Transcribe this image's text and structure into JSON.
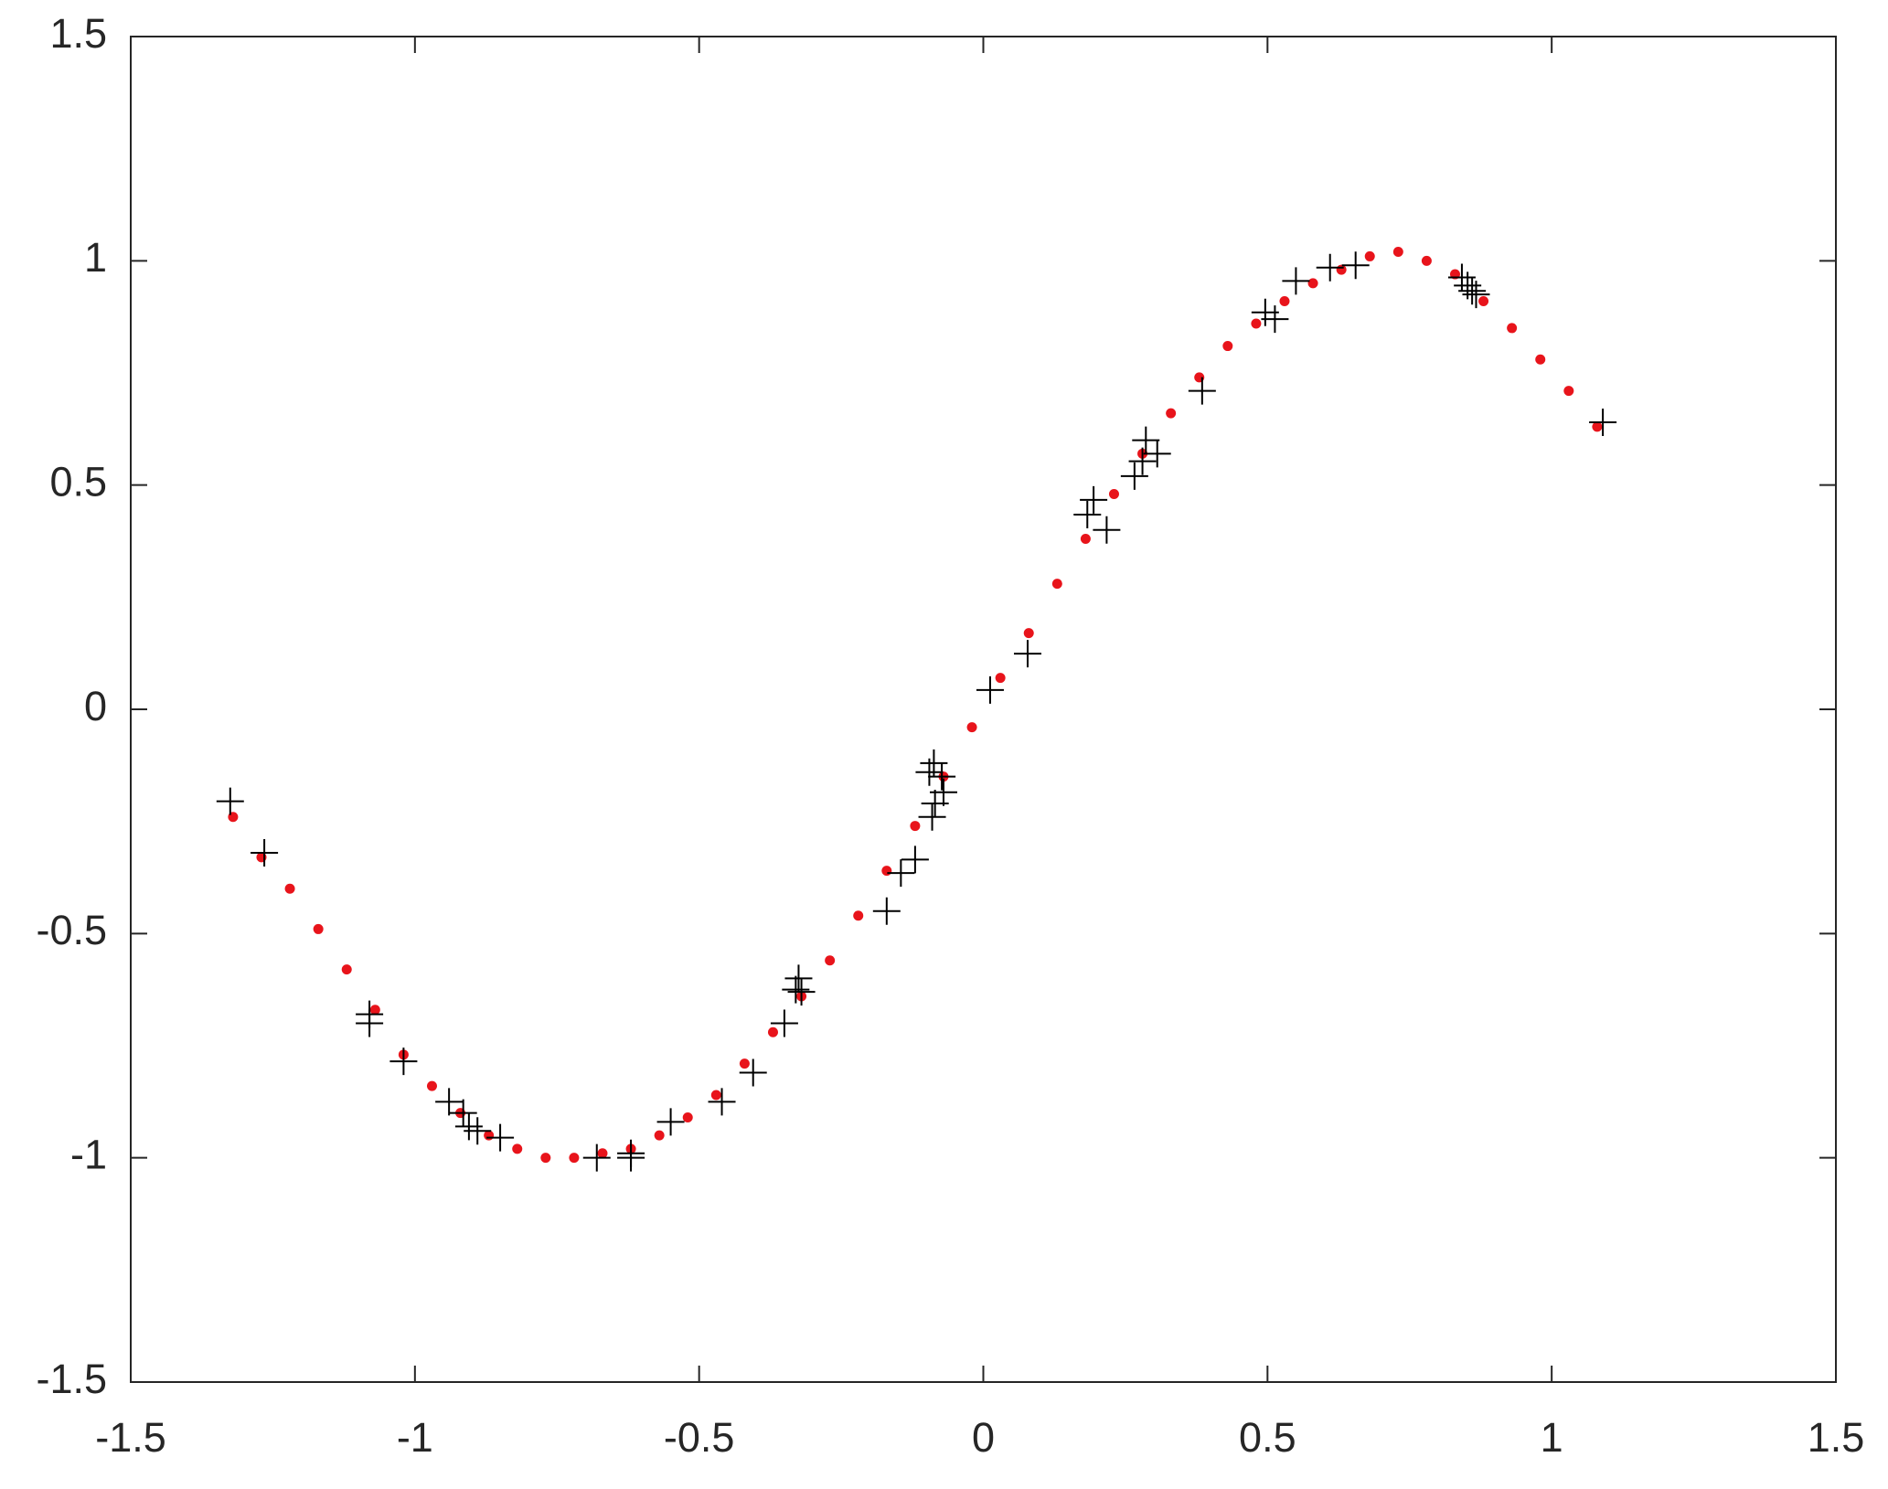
{
  "chart_data": {
    "type": "scatter",
    "xlim": [
      -1.5,
      1.5
    ],
    "ylim": [
      -1.5,
      1.5
    ],
    "xticks": [
      -1.5,
      -1,
      -0.5,
      0,
      0.5,
      1,
      1.5
    ],
    "yticks": [
      -1.5,
      -1,
      -0.5,
      0,
      0.5,
      1,
      1.5
    ],
    "series": [
      {
        "color": "#e8141b",
        "line": true,
        "marker": "dot",
        "x": [
          -1.32,
          -1.27,
          -1.22,
          -1.17,
          -1.12,
          -1.07,
          -1.02,
          -0.97,
          -0.92,
          -0.87,
          -0.82,
          -0.77,
          -0.72,
          -0.67,
          -0.62,
          -0.57,
          -0.52,
          -0.47,
          -0.42,
          -0.37,
          -0.32,
          -0.27,
          -0.22,
          -0.17,
          -0.12,
          -0.07,
          -0.02,
          0.03,
          0.08,
          0.13,
          0.18,
          0.23,
          0.28,
          0.33,
          0.38,
          0.43,
          0.48,
          0.53,
          0.58,
          0.63,
          0.68,
          0.73,
          0.78,
          0.83,
          0.88,
          0.93,
          0.98,
          1.03,
          1.08
        ],
        "values": [
          -0.24,
          -0.33,
          -0.4,
          -0.49,
          -0.58,
          -0.67,
          -0.77,
          -0.84,
          -0.9,
          -0.95,
          -0.98,
          -1,
          -1,
          -0.99,
          -0.98,
          -0.95,
          -0.91,
          -0.86,
          -0.79,
          -0.72,
          -0.64,
          -0.56,
          -0.46,
          -0.36,
          -0.26,
          -0.15,
          -0.04,
          0.07,
          0.17,
          0.28,
          0.38,
          0.48,
          0.57,
          0.66,
          0.74,
          0.81,
          0.86,
          0.91,
          0.95,
          0.98,
          1.01,
          1.02,
          1,
          0.97,
          0.91,
          0.85,
          0.78,
          0.71,
          0.63
        ]
      },
      {
        "color": "#000000",
        "line": false,
        "marker": "plus",
        "x": [
          -1.325,
          -1.265,
          -1.08,
          -1.08,
          -1.02,
          -0.94,
          -0.915,
          -0.905,
          -0.89,
          -0.85,
          -0.68,
          -0.62,
          -0.62,
          -0.55,
          -0.46,
          -0.405,
          -0.35,
          -0.33,
          -0.325,
          -0.32,
          -0.17,
          -0.145,
          -0.12,
          -0.09,
          -0.087,
          -0.095,
          -0.073,
          -0.07,
          -0.085,
          0.012,
          0.078,
          0.183,
          0.194,
          0.217,
          0.266,
          0.28,
          0.286,
          0.306,
          0.385,
          0.496,
          0.513,
          0.55,
          0.61,
          0.655,
          0.842,
          0.852,
          0.86,
          0.867,
          1.09
        ],
        "values": [
          -0.205,
          -0.32,
          -0.68,
          -0.7,
          -0.785,
          -0.875,
          -0.9,
          -0.93,
          -0.94,
          -0.955,
          -1,
          -0.99,
          -1,
          -0.92,
          -0.875,
          -0.81,
          -0.7,
          -0.625,
          -0.6,
          -0.63,
          -0.45,
          -0.365,
          -0.335,
          -0.24,
          -0.12,
          -0.14,
          -0.15,
          -0.185,
          -0.21,
          0.043,
          0.124,
          0.434,
          0.467,
          0.4,
          0.52,
          0.553,
          0.6,
          0.57,
          0.71,
          0.885,
          0.87,
          0.955,
          0.985,
          0.99,
          0.963,
          0.945,
          0.933,
          0.925,
          0.64
        ]
      }
    ]
  }
}
